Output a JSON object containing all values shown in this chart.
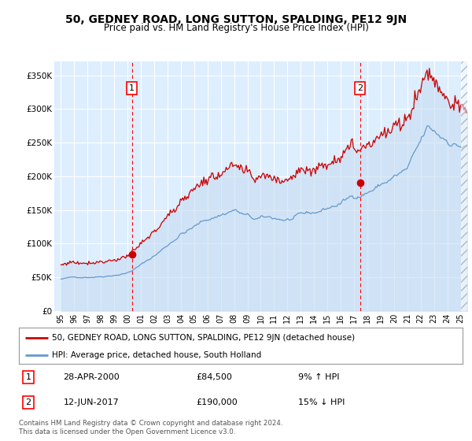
{
  "title": "50, GEDNEY ROAD, LONG SUTTON, SPALDING, PE12 9JN",
  "subtitle": "Price paid vs. HM Land Registry's House Price Index (HPI)",
  "red_line_label": "50, GEDNEY ROAD, LONG SUTTON, SPALDING, PE12 9JN (detached house)",
  "blue_line_label": "HPI: Average price, detached house, South Holland",
  "sale1_date": "28-APR-2000",
  "sale1_price": 84500,
  "sale1_hpi_pct": "9% ↑ HPI",
  "sale1_year": 2000.32,
  "sale2_date": "12-JUN-2017",
  "sale2_price": 190000,
  "sale2_hpi_pct": "15% ↓ HPI",
  "sale2_year": 2017.45,
  "ylim": [
    0,
    370000
  ],
  "xlim_start": 1994.5,
  "xlim_end": 2025.5,
  "yticks": [
    0,
    50000,
    100000,
    150000,
    200000,
    250000,
    300000,
    350000
  ],
  "ytick_labels": [
    "£0",
    "£50K",
    "£100K",
    "£150K",
    "£200K",
    "£250K",
    "£300K",
    "£350K"
  ],
  "xtick_years": [
    1995,
    1996,
    1997,
    1998,
    1999,
    2000,
    2001,
    2002,
    2003,
    2004,
    2005,
    2006,
    2007,
    2008,
    2009,
    2010,
    2011,
    2012,
    2013,
    2014,
    2015,
    2016,
    2017,
    2018,
    2019,
    2020,
    2021,
    2022,
    2023,
    2024,
    2025
  ],
  "plot_bg_color": "#ddeeff",
  "red_color": "#cc0000",
  "blue_color": "#6699cc",
  "blue_fill_color": "#c8dcf0",
  "footer": "Contains HM Land Registry data © Crown copyright and database right 2024.\nThis data is licensed under the Open Government Licence v3.0."
}
